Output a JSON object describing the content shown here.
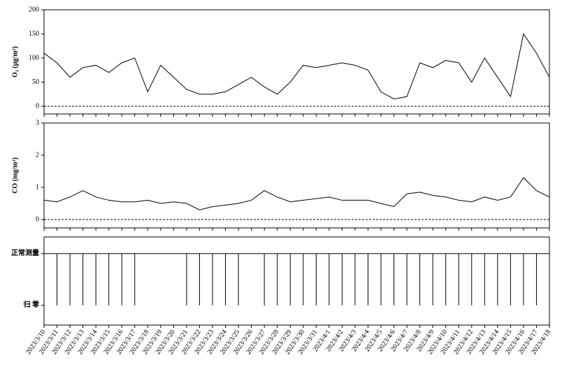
{
  "chart_data": [
    {
      "type": "line",
      "ylabel": "O₃ (μg/m³)",
      "color": "#000000",
      "ylim": [
        -16,
        200
      ],
      "yticks": [
        0,
        50,
        100,
        150,
        200
      ],
      "values": [
        110,
        90,
        60,
        80,
        85,
        70,
        90,
        100,
        30,
        85,
        60,
        35,
        25,
        25,
        30,
        45,
        60,
        40,
        25,
        50,
        85,
        80,
        85,
        90,
        85,
        75,
        30,
        15,
        20,
        90,
        80,
        95,
        90,
        50,
        100,
        60,
        20,
        150,
        110,
        60
      ]
    },
    {
      "type": "line",
      "ylabel": "CO (mg/m³)",
      "color": "#000000",
      "ylim": [
        -0.26,
        3
      ],
      "yticks": [
        0,
        1,
        2,
        3
      ],
      "values": [
        0.6,
        0.55,
        0.7,
        0.9,
        0.7,
        0.6,
        0.55,
        0.55,
        0.6,
        0.5,
        0.55,
        0.5,
        0.3,
        0.4,
        0.45,
        0.5,
        0.6,
        0.9,
        0.7,
        0.55,
        0.6,
        0.65,
        0.7,
        0.6,
        0.6,
        0.6,
        0.5,
        0.4,
        0.8,
        0.85,
        0.75,
        0.7,
        0.6,
        0.55,
        0.7,
        0.6,
        0.7,
        1.3,
        0.9,
        0.7
      ]
    },
    {
      "type": "event",
      "color": "#000000",
      "ylim": [
        -0.38,
        1.32
      ],
      "yticks": [
        {
          "value": 0,
          "label": "归  零"
        },
        {
          "value": 1,
          "label": "正常测量"
        }
      ],
      "categories": [
        "2023/3/10",
        "2023/3/11",
        "2023/3/12",
        "2023/3/13",
        "2023/3/14",
        "2023/3/15",
        "2023/3/16",
        "2023/3/17",
        "2023/3/18",
        "2023/3/19",
        "2023/3/20",
        "2023/3/21",
        "2023/3/22",
        "2023/3/23",
        "2023/3/24",
        "2023/3/25",
        "2023/3/26",
        "2023/3/27",
        "2023/3/28",
        "2023/3/29",
        "2023/3/30",
        "2023/3/31",
        "2023/4/1",
        "2023/4/2",
        "2023/4/3",
        "2023/4/4",
        "2023/4/5",
        "2023/4/6",
        "2023/4/7",
        "2023/4/8",
        "2023/4/9",
        "2023/4/10",
        "2023/4/11",
        "2023/4/12",
        "2023/4/13",
        "2023/4/14",
        "2023/4/15",
        "2023/4/16",
        "2023/4/17",
        "2023/4/18"
      ],
      "values": [
        0,
        0,
        0,
        0,
        0,
        0,
        0,
        0,
        1,
        1,
        1,
        0,
        0,
        0,
        0,
        0,
        1,
        0,
        0,
        0,
        0,
        0,
        0,
        0,
        0,
        0,
        0,
        0,
        0,
        0,
        0,
        0,
        0,
        0,
        0,
        0,
        0,
        0,
        0,
        1
      ]
    }
  ]
}
